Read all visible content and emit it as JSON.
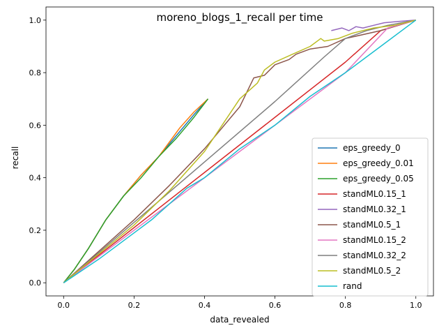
{
  "chart_data": {
    "type": "line",
    "title": "moreno_blogs_1_recall per time",
    "xlabel": "data_revealed",
    "ylabel": "recall",
    "xlim": [
      -0.05,
      1.05
    ],
    "ylim": [
      -0.05,
      1.05
    ],
    "xticks": [
      0.0,
      0.2,
      0.4,
      0.6,
      0.8,
      1.0
    ],
    "xtick_labels": [
      "0.0",
      "0.2",
      "0.4",
      "0.6",
      "0.8",
      "1.0"
    ],
    "yticks": [
      0.0,
      0.2,
      0.4,
      0.6,
      0.8,
      1.0
    ],
    "ytick_labels": [
      "0.0",
      "0.2",
      "0.4",
      "0.6",
      "0.8",
      "1.0"
    ],
    "grid": false,
    "legend_position": "lower-right",
    "series": [
      {
        "name": "eps_greedy_0",
        "color": "#1f77b4",
        "x": [
          0.0,
          0.03,
          0.07,
          0.12,
          0.17,
          0.22,
          0.27,
          0.32,
          0.37,
          0.41
        ],
        "y": [
          0.0,
          0.05,
          0.13,
          0.24,
          0.33,
          0.41,
          0.48,
          0.56,
          0.64,
          0.7
        ]
      },
      {
        "name": "eps_greedy_0.01",
        "color": "#ff7f0e",
        "x": [
          0.0,
          0.03,
          0.07,
          0.12,
          0.17,
          0.22,
          0.27,
          0.33,
          0.37,
          0.41
        ],
        "y": [
          0.0,
          0.05,
          0.13,
          0.24,
          0.33,
          0.41,
          0.48,
          0.59,
          0.65,
          0.7
        ]
      },
      {
        "name": "eps_greedy_0.05",
        "color": "#2ca02c",
        "x": [
          0.0,
          0.03,
          0.07,
          0.12,
          0.17,
          0.22,
          0.27,
          0.32,
          0.37,
          0.41
        ],
        "y": [
          0.0,
          0.05,
          0.13,
          0.24,
          0.33,
          0.4,
          0.48,
          0.55,
          0.63,
          0.7
        ]
      },
      {
        "name": "standML0.15_1",
        "color": "#d62728",
        "x": [
          0.0,
          0.2,
          0.4,
          0.6,
          0.8,
          0.9,
          1.0
        ],
        "y": [
          0.0,
          0.21,
          0.42,
          0.63,
          0.84,
          0.96,
          1.0
        ]
      },
      {
        "name": "standML0.32_1",
        "color": "#9467bd",
        "x": [
          0.76,
          0.79,
          0.81,
          0.83,
          0.85,
          0.88,
          0.91,
          0.95,
          1.0
        ],
        "y": [
          0.96,
          0.97,
          0.96,
          0.975,
          0.97,
          0.98,
          0.99,
          0.995,
          1.0
        ],
        "y_alt": null
      },
      {
        "name": "standML0.5_1",
        "color": "#8c564b",
        "x": [
          0.0,
          0.1,
          0.2,
          0.3,
          0.4,
          0.5,
          0.54,
          0.57,
          0.6,
          0.64,
          0.66,
          0.7,
          0.75,
          0.8,
          0.9,
          1.0
        ],
        "y": [
          0.0,
          0.12,
          0.24,
          0.37,
          0.51,
          0.67,
          0.78,
          0.79,
          0.83,
          0.85,
          0.87,
          0.89,
          0.9,
          0.93,
          0.96,
          1.0
        ]
      },
      {
        "name": "standML0.15_2",
        "color": "#e377c2",
        "x": [
          0.0,
          0.2,
          0.4,
          0.6,
          0.8,
          0.92,
          1.0
        ],
        "y": [
          0.0,
          0.2,
          0.4,
          0.6,
          0.8,
          0.97,
          1.0
        ]
      },
      {
        "name": "standML0.32_2",
        "color": "#7f7f7f",
        "x": [
          0.0,
          0.2,
          0.4,
          0.6,
          0.74,
          0.8,
          0.86,
          0.92,
          1.0
        ],
        "y": [
          0.0,
          0.23,
          0.46,
          0.69,
          0.86,
          0.93,
          0.96,
          0.98,
          1.0
        ]
      },
      {
        "name": "standML0.5_2",
        "color": "#bcbd22",
        "x": [
          0.0,
          0.1,
          0.2,
          0.3,
          0.4,
          0.5,
          0.55,
          0.57,
          0.6,
          0.65,
          0.7,
          0.73,
          0.74,
          0.78,
          0.82,
          0.88,
          0.94,
          1.0
        ],
        "y": [
          0.0,
          0.11,
          0.22,
          0.35,
          0.5,
          0.7,
          0.76,
          0.81,
          0.84,
          0.87,
          0.9,
          0.93,
          0.92,
          0.93,
          0.95,
          0.97,
          0.98,
          1.0
        ]
      },
      {
        "name": "rand",
        "color": "#17becf",
        "x": [
          0.0,
          0.1,
          0.2,
          0.25,
          0.35,
          0.4,
          0.5,
          0.6,
          0.7,
          0.8,
          0.9,
          1.0
        ],
        "y": [
          0.0,
          0.09,
          0.19,
          0.24,
          0.36,
          0.4,
          0.51,
          0.6,
          0.71,
          0.8,
          0.9,
          1.0
        ]
      }
    ]
  }
}
